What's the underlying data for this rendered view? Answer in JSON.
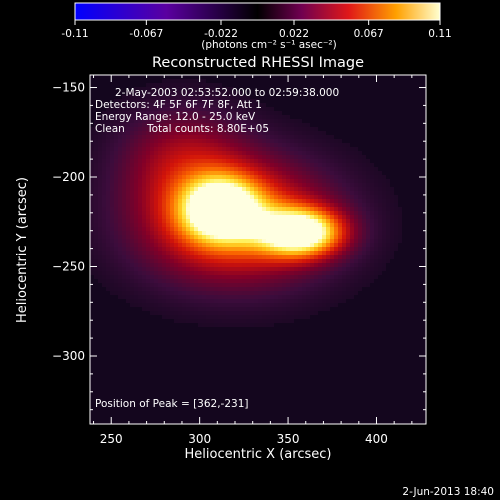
{
  "chart_data": {
    "type": "heatmap",
    "title": "Reconstructed RHESSI Image",
    "xlabel": "Heliocentric X (arcsec)",
    "ylabel": "Heliocentric Y (arcsec)",
    "xlim": [
      238,
      428
    ],
    "ylim": [
      -338,
      -143
    ],
    "xticks": [
      250,
      300,
      350,
      400
    ],
    "yticks": [
      -150,
      -200,
      -250,
      -300
    ],
    "colorbar": {
      "range": [
        -0.11,
        0.11
      ],
      "ticks": [
        "-0.11",
        "-0.067",
        "-0.022",
        "0.022",
        "0.067",
        "0.11"
      ],
      "unit_label": "(photons cm⁻² s⁻¹ asec⁻²)"
    },
    "annotations": {
      "time_range": "2-May-2003 02:53:52.000 to 02:59:38.000",
      "detectors": "Detectors: 4F 5F 6F 7F 8F, Att 1",
      "energy": "Energy Range: 12.0 - 25.0 keV",
      "method": "Clean",
      "counts": "Total counts: 8.80E+05",
      "peak": "Position of Peak = [362,-231]"
    },
    "peak": {
      "x": 362,
      "y": -231,
      "value": 0.11
    },
    "sources": [
      {
        "x": 357,
        "y": -231,
        "sx": 16,
        "sy": 9,
        "amp": 0.11
      },
      {
        "x": 312,
        "y": -218,
        "sx": 15,
        "sy": 12,
        "amp": 0.1
      },
      {
        "x": 320,
        "y": -225,
        "sx": 38,
        "sy": 24,
        "amp": 0.07
      },
      {
        "x": 290,
        "y": -188,
        "sx": 25,
        "sy": 20,
        "amp": 0.03
      }
    ],
    "timestamp": "2-Jun-2013 18:40"
  }
}
